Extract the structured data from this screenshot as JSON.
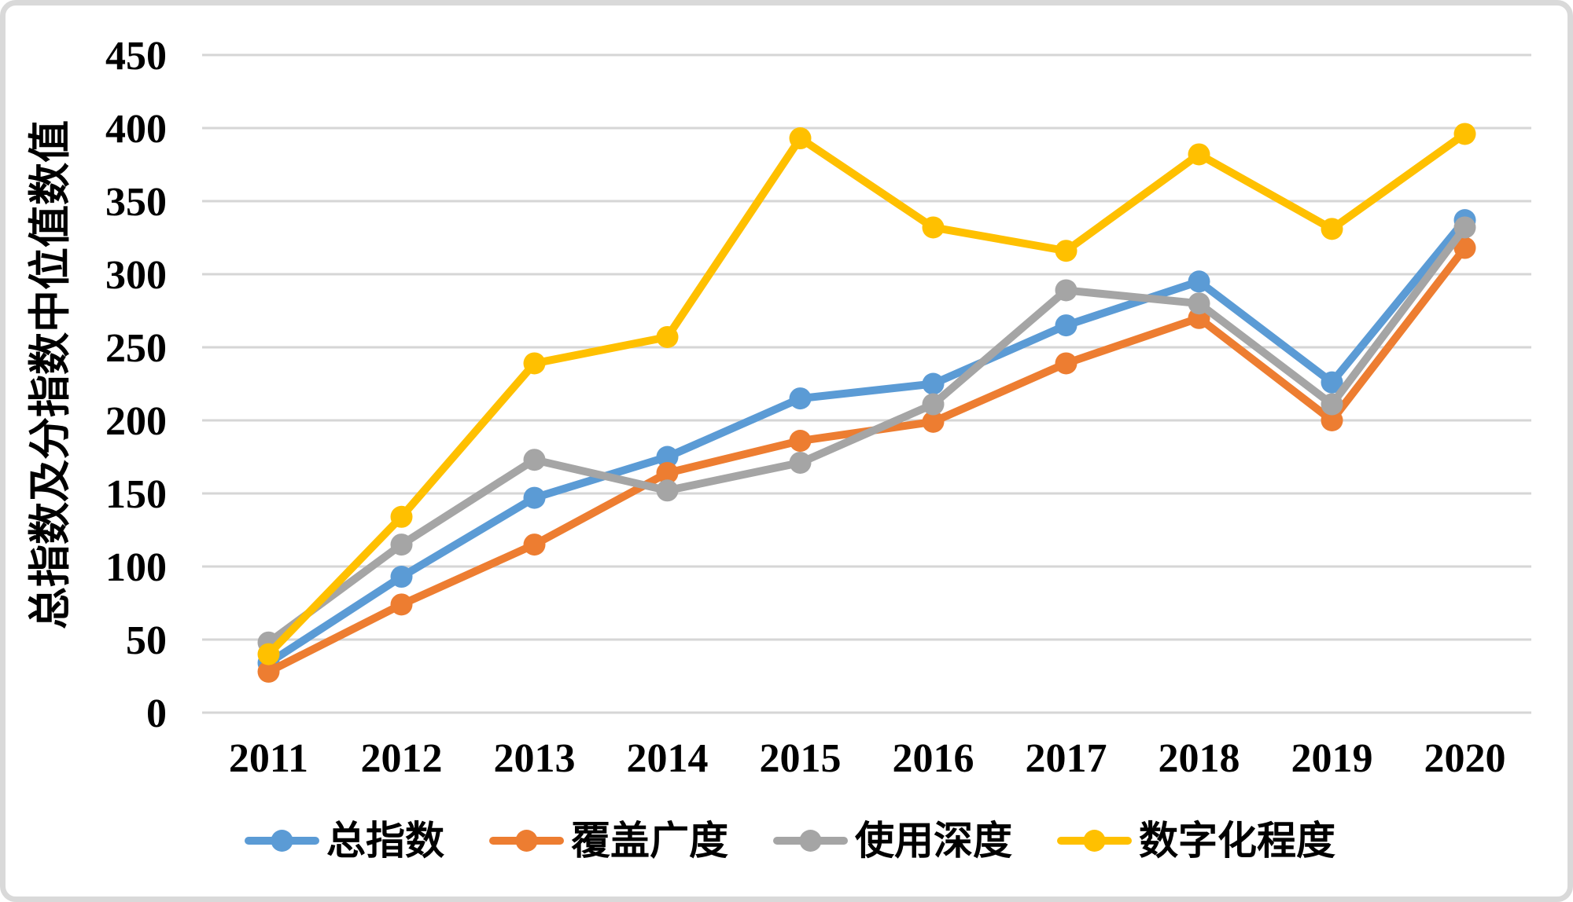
{
  "frame": {
    "background": "#FFFFFF",
    "border_color": "#D9D9D9"
  },
  "chart_data": {
    "type": "line",
    "title": "",
    "ylabel": "总指数及分指数中位值数值",
    "xlabel": "",
    "categories": [
      "2011",
      "2012",
      "2013",
      "2014",
      "2015",
      "2016",
      "2017",
      "2018",
      "2019",
      "2020"
    ],
    "yticks": [
      0,
      50,
      100,
      150,
      200,
      250,
      300,
      350,
      400,
      450
    ],
    "ylim": [
      0,
      450
    ],
    "grid": "horizontal-only",
    "gridline_color": "#D6D6D6",
    "legend_position": "bottom",
    "marker": "circle",
    "series": [
      {
        "name": "总指数",
        "color": "#5B9BD5",
        "values": [
          34,
          93,
          147,
          175,
          215,
          225,
          265,
          295,
          226,
          337
        ]
      },
      {
        "name": "覆盖广度",
        "color": "#ED7D31",
        "values": [
          28,
          74,
          115,
          164,
          186,
          199,
          239,
          270,
          200,
          318
        ]
      },
      {
        "name": "使用深度",
        "color": "#A5A5A5",
        "values": [
          48,
          115,
          173,
          152,
          171,
          211,
          289,
          280,
          211,
          332
        ]
      },
      {
        "name": "数字化程度",
        "color": "#FFC000",
        "values": [
          40,
          134,
          239,
          257,
          393,
          332,
          316,
          382,
          331,
          396
        ]
      }
    ]
  }
}
